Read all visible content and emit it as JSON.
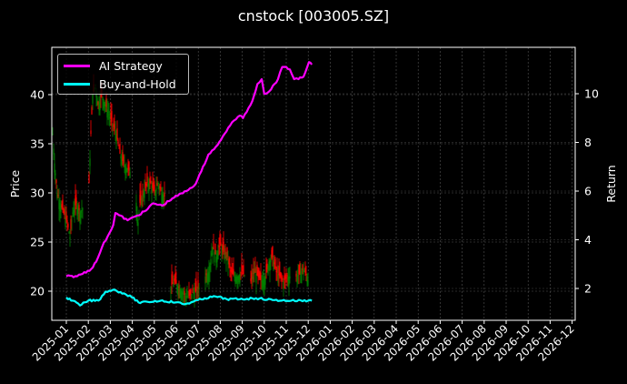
{
  "chart_data": {
    "type": "line",
    "title": "cnstock [003005.SZ]",
    "xlabel": "",
    "ylabel": "Price",
    "y2label": "Return",
    "ylim": [
      17.0,
      44.8
    ],
    "y2lim": [
      1.18,
      11.5
    ],
    "grid": true,
    "legend_position": "upper left",
    "x_tick_labels": [
      "2025-01",
      "2025-02",
      "2025-03",
      "2025-04",
      "2025-05",
      "2025-06",
      "2025-07",
      "2025-08",
      "2025-09",
      "2025-10",
      "2025-11",
      "2025-12",
      "2026-01",
      "2026-02",
      "2026-03",
      "2026-04",
      "2026-05",
      "2026-06",
      "2026-07",
      "2026-08",
      "2026-09",
      "2026-10",
      "2026-11",
      "2026-12"
    ],
    "y_ticks": [
      20,
      25,
      30,
      35,
      40
    ],
    "y2_ticks": [
      2,
      4,
      6,
      8,
      10
    ],
    "series": [
      {
        "name": "AI Strategy",
        "axis": "right",
        "color": "#ff00ff",
        "x": [
          "2025-01-01",
          "2025-01-16",
          "2025-02-05",
          "2025-02-12",
          "2025-02-20",
          "2025-03-05",
          "2025-03-08",
          "2025-03-25",
          "2025-04-08",
          "2025-04-20",
          "2025-04-30",
          "2025-05-12",
          "2025-05-26",
          "2025-06-15",
          "2025-06-28",
          "2025-07-05",
          "2025-07-15",
          "2025-07-28",
          "2025-08-02",
          "2025-08-12",
          "2025-08-20",
          "2025-08-28",
          "2025-09-02",
          "2025-09-15",
          "2025-09-22",
          "2025-09-28",
          "2025-10-01",
          "2025-10-08",
          "2025-10-20",
          "2025-10-26",
          "2025-11-01",
          "2025-11-06",
          "2025-11-12",
          "2025-11-18",
          "2025-11-25",
          "2025-12-02",
          "2025-12-06"
        ],
        "values": [
          2.5,
          2.5,
          2.8,
          3.1,
          3.7,
          4.6,
          5.1,
          4.8,
          5.0,
          5.2,
          5.5,
          5.4,
          5.7,
          6.0,
          6.3,
          6.8,
          7.5,
          7.9,
          8.1,
          8.6,
          8.9,
          9.1,
          9.0,
          9.7,
          10.4,
          10.6,
          10.0,
          10.1,
          10.6,
          11.1,
          11.1,
          11.0,
          10.6,
          10.6,
          10.7,
          11.3,
          11.2
        ]
      },
      {
        "name": "Buy-and-Hold",
        "axis": "right",
        "color": "#00ffff",
        "x": [
          "2025-01-01",
          "2025-01-10",
          "2025-01-20",
          "2025-02-01",
          "2025-02-15",
          "2025-02-25",
          "2025-03-05",
          "2025-03-20",
          "2025-03-31",
          "2025-04-12",
          "2025-04-22",
          "2025-05-10",
          "2025-06-01",
          "2025-06-12",
          "2025-06-24",
          "2025-07-10",
          "2025-07-25",
          "2025-08-10",
          "2025-08-28",
          "2025-09-20",
          "2025-10-15",
          "2025-11-08",
          "2025-12-01",
          "2025-12-06"
        ],
        "values": [
          1.63,
          1.5,
          1.3,
          1.5,
          1.5,
          1.87,
          1.95,
          1.8,
          1.63,
          1.4,
          1.45,
          1.5,
          1.43,
          1.35,
          1.45,
          1.6,
          1.67,
          1.56,
          1.56,
          1.6,
          1.52,
          1.5,
          1.5,
          1.5
        ]
      },
      {
        "name": "Price (candlestick)",
        "axis": "left",
        "type": "candlestick",
        "up_color": "#008000",
        "down_color": "#ff0000",
        "x": [
          "2025-01",
          "2025-02",
          "2025-03",
          "2025-04",
          "2025-05",
          "2025-06",
          "2025-07",
          "2025-08",
          "2025-09",
          "2025-10",
          "2025-11",
          "2025-12"
        ],
        "approx_close": [
          30.0,
          28.5,
          40.0,
          36.0,
          28.5,
          30.5,
          20.0,
          22.5,
          23.5,
          21.5,
          22.0,
          21.5
        ],
        "approx_high": [
          37.0,
          31.0,
          44.0,
          39.0,
          32.0,
          32.0,
          21.5,
          25.8,
          25.5,
          24.0,
          23.0,
          22.8
        ],
        "approx_low": [
          25.0,
          26.0,
          33.0,
          32.0,
          24.5,
          28.5,
          18.8,
          19.5,
          21.0,
          20.0,
          20.5,
          20.5
        ]
      }
    ]
  },
  "legend": {
    "items": [
      {
        "label": "AI Strategy",
        "color": "#ff00ff"
      },
      {
        "label": "Buy-and-Hold",
        "color": "#00ffff"
      }
    ]
  }
}
